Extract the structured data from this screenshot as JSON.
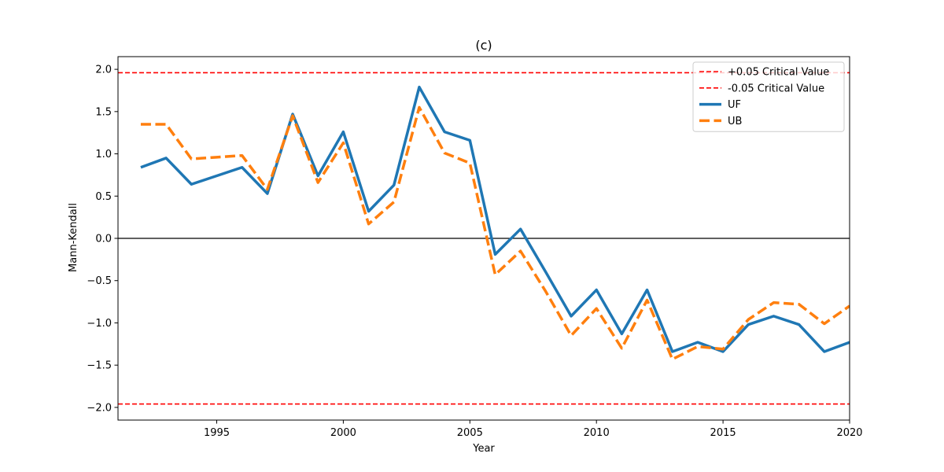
{
  "chart_data": {
    "type": "line",
    "title": "(c)",
    "xlabel": "Year",
    "ylabel": "Mann-Kendall",
    "xlim": [
      1991.1,
      2020
    ],
    "ylim": [
      -2.15,
      2.15
    ],
    "xticks": [
      1995,
      2000,
      2005,
      2010,
      2015,
      2020
    ],
    "yticks": [
      -2.0,
      -1.5,
      -1.0,
      -0.5,
      0.0,
      0.5,
      1.0,
      1.5,
      2.0
    ],
    "grid": false,
    "legend_position": "top-right",
    "x": [
      1992,
      1993,
      1994,
      1995,
      1996,
      1997,
      1998,
      1999,
      2000,
      2001,
      2002,
      2003,
      2004,
      2005,
      2006,
      2007,
      2008,
      2009,
      2010,
      2011,
      2012,
      2013,
      2014,
      2015,
      2016,
      2017,
      2018,
      2019,
      2020
    ],
    "series": [
      {
        "name": "UF",
        "color": "#1f77b4",
        "style": "solid",
        "values": [
          0.84,
          0.95,
          0.64,
          0.74,
          0.84,
          0.53,
          1.47,
          0.74,
          1.26,
          0.32,
          0.63,
          1.79,
          1.26,
          1.16,
          -0.19,
          0.11,
          -0.4,
          -0.92,
          -0.61,
          -1.13,
          -0.61,
          -1.34,
          -1.23,
          -1.34,
          -1.02,
          -0.92,
          -1.02,
          -1.34,
          -1.23
        ]
      },
      {
        "name": "UB",
        "color": "#ff7f0e",
        "style": "dashed",
        "values": [
          1.35,
          1.35,
          0.94,
          0.96,
          0.98,
          0.58,
          1.45,
          0.66,
          1.13,
          0.17,
          0.43,
          1.55,
          1.01,
          0.89,
          -0.43,
          -0.15,
          -0.63,
          -1.15,
          -0.83,
          -1.3,
          -0.73,
          -1.43,
          -1.28,
          -1.31,
          -0.96,
          -0.76,
          -0.78,
          -1.01,
          -0.8
        ]
      }
    ],
    "reference_lines": [
      {
        "name": "+0.05 Critical Value",
        "value": 1.96,
        "color": "#ff0000",
        "style": "dashed"
      },
      {
        "name": "-0.05 Critical Value",
        "value": -1.96,
        "color": "#ff0000",
        "style": "dashed"
      },
      {
        "name": "",
        "value": 0,
        "color": "#000000",
        "style": "solid"
      }
    ]
  }
}
